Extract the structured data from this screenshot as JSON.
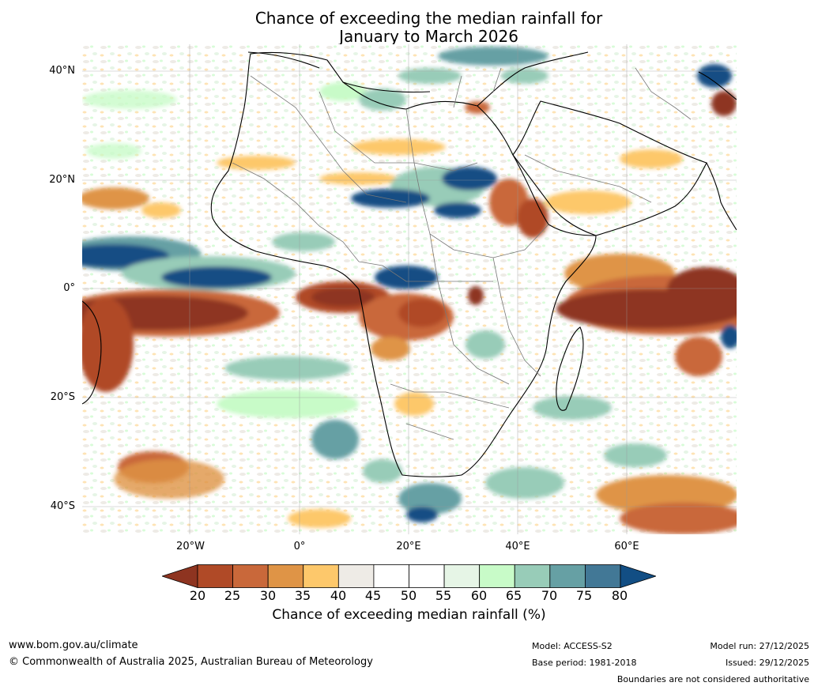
{
  "title": {
    "line1": "Chance of exceeding the median rainfall for",
    "line2": "January to March 2026"
  },
  "map": {
    "region": "Africa",
    "lat_labels": [
      "40°N",
      "20°N",
      "0°",
      "20°S",
      "40°S"
    ],
    "lon_labels": [
      "20°W",
      "0°",
      "20°E",
      "40°E",
      "60°E"
    ]
  },
  "colorbar": {
    "ticks": [
      "20",
      "25",
      "30",
      "35",
      "40",
      "45",
      "50",
      "55",
      "60",
      "65",
      "70",
      "75",
      "80"
    ],
    "colors": [
      "#8e3420",
      "#b04a27",
      "#c9683a",
      "#df9446",
      "#fdc86b",
      "#eeebe6",
      "#ffffff",
      "#ffffff",
      "#e6f5e6",
      "#c8fbc8",
      "#98ccb8",
      "#66a0a4",
      "#427896",
      "#124e84"
    ],
    "label": "Chance of exceeding median rainfall (%)"
  },
  "footer": {
    "website": "www.bom.gov.au/climate",
    "copyright": "© Commonwealth of Australia 2025, Australian Bureau of Meteorology",
    "model": "Model: ACCESS-S2",
    "base_period": "Base period: 1981-2018",
    "model_run": "Model run: 27/12/2025",
    "issued": "Issued: 29/12/2025",
    "disclaimer": "Boundaries are not considered authoritative"
  }
}
